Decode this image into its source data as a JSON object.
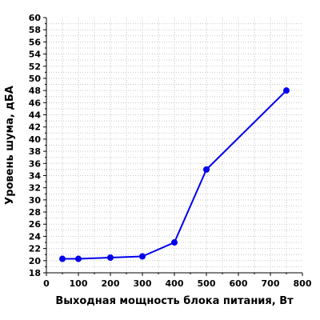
{
  "chart_data": {
    "type": "line",
    "title": "",
    "xlabel": "Выходная мощность блока питания, Вт",
    "ylabel": "Уровень шума, дБА",
    "xlim": [
      0,
      800
    ],
    "ylim": [
      18,
      60
    ],
    "x_ticks": [
      "0",
      "100",
      "200",
      "300",
      "400",
      "500",
      "600",
      "700",
      "800"
    ],
    "y_ticks": [
      "18",
      "20",
      "22",
      "24",
      "26",
      "28",
      "30",
      "32",
      "34",
      "36",
      "38",
      "40",
      "42",
      "44",
      "46",
      "48",
      "50",
      "52",
      "54",
      "56",
      "58",
      "60"
    ],
    "grid": true,
    "series": [
      {
        "color": "#0000ee",
        "x": [
          50,
          100,
          200,
          300,
          400,
          500,
          750
        ],
        "y": [
          20.3,
          20.3,
          20.5,
          20.7,
          23.0,
          35.0,
          48.0
        ]
      }
    ]
  }
}
